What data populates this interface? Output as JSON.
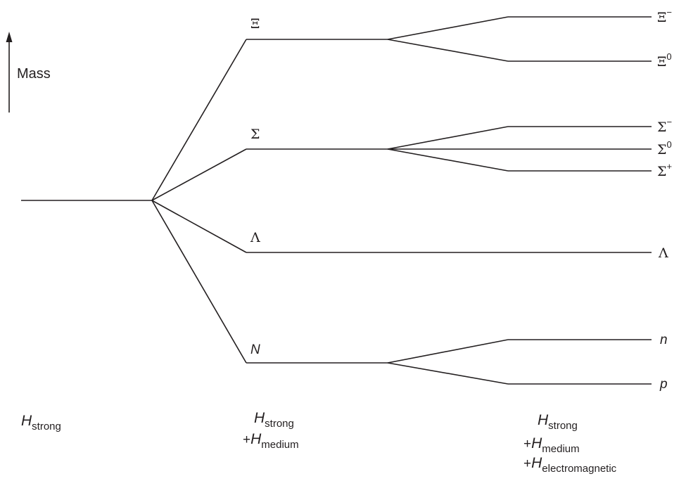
{
  "mass_axis": {
    "label": "Mass"
  },
  "levels": {
    "strong": {
      "symbol_letter": "",
      "baryon_octet": ""
    },
    "medium": {
      "xi": "Ξ",
      "sigma": "Σ",
      "lambda": "Λ",
      "nucleon": "N"
    },
    "electromagnetic": {
      "xi_minus": {
        "base": "Ξ",
        "charge": "−"
      },
      "xi_zero": {
        "base": "Ξ",
        "charge": "0"
      },
      "sigma_minus": {
        "base": "Σ",
        "charge": "−"
      },
      "sigma_zero": {
        "base": "Σ",
        "charge": "0"
      },
      "sigma_plus": {
        "base": "Σ",
        "charge": "+"
      },
      "lambda": {
        "base": "Λ"
      },
      "neutron": {
        "base": "n"
      },
      "proton": {
        "base": "p"
      }
    }
  },
  "hamiltonians": {
    "col1": {
      "line1": {
        "h": "H",
        "sub": "strong"
      }
    },
    "col2": {
      "line1": {
        "h": "H",
        "sub": "strong"
      },
      "line2": {
        "plus": "+",
        "h": "H",
        "sub": "medium"
      }
    },
    "col3": {
      "line1": {
        "h": "H",
        "sub": "strong"
      },
      "line2": {
        "plus": "+",
        "h": "H",
        "sub": "medium"
      },
      "line3": {
        "plus": "+",
        "h": "H",
        "sub": "electromagnetic"
      }
    }
  }
}
